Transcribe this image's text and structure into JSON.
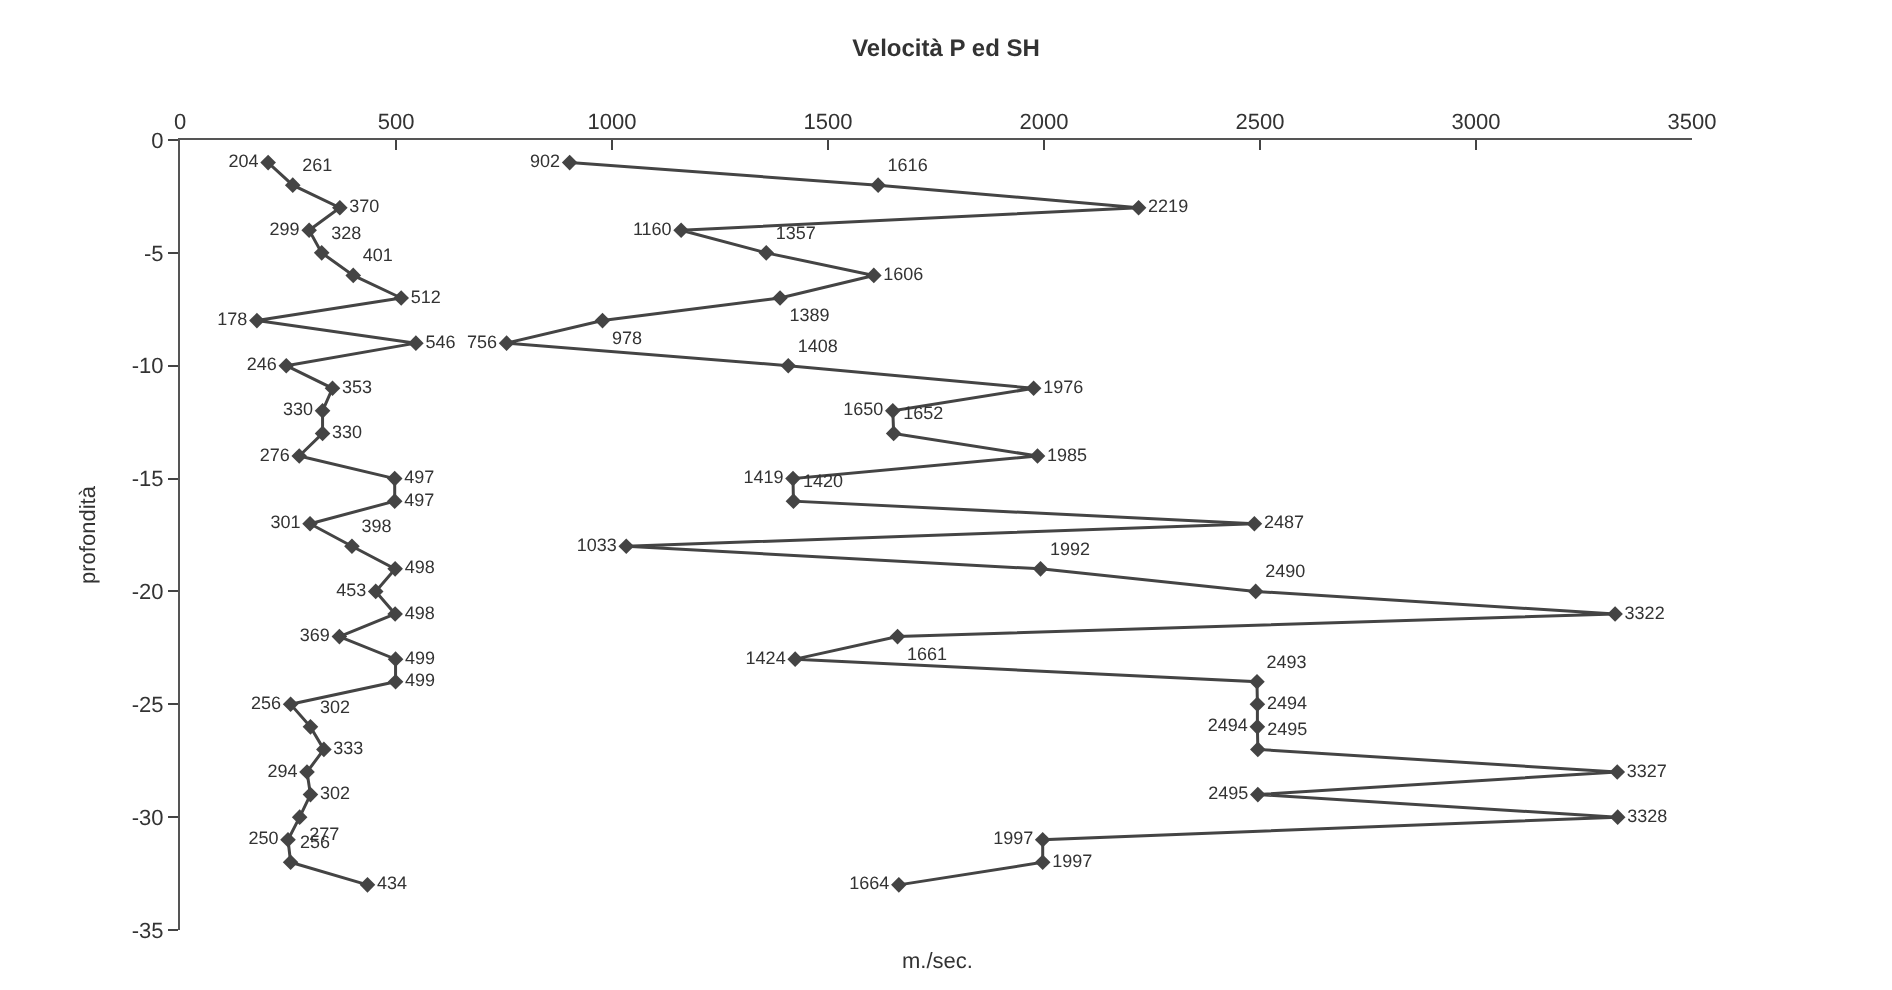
{
  "chart_data": {
    "type": "line",
    "title": "Velocità P ed SH",
    "xlabel": "m./sec.",
    "ylabel": "profondità",
    "orientation": "horizontal",
    "series": [
      {
        "color": "#444444",
        "x": [
          -1,
          -2,
          -3,
          -4,
          -5,
          -6,
          -7,
          -8,
          -9,
          -10,
          -11,
          -12,
          -13,
          -14,
          -15,
          -16,
          -17,
          -18,
          -19,
          -20,
          -21,
          -22,
          -23,
          -24,
          -25,
          -26,
          -27,
          -28,
          -29,
          -30,
          -31,
          -32,
          -33
        ],
        "values": [
          204,
          261,
          370,
          299,
          328,
          401,
          512,
          178,
          546,
          246,
          353,
          330,
          330,
          276,
          497,
          497,
          301,
          398,
          498,
          453,
          498,
          369,
          499,
          499,
          256,
          302,
          333,
          294,
          302,
          277,
          250,
          256,
          434
        ]
      },
      {
        "color": "#444444",
        "x": [
          -1,
          -2,
          -3,
          -4,
          -5,
          -6,
          -7,
          -8,
          -9,
          -10,
          -11,
          -12,
          -13,
          -14,
          -15,
          -16,
          -17,
          -18,
          -19,
          -20,
          -21,
          -22,
          -23,
          -24,
          -25,
          -26,
          -27,
          -28,
          -29,
          -30,
          -31,
          -32,
          -33
        ],
        "values": [
          902,
          1616,
          2219,
          1160,
          1357,
          1606,
          1389,
          978,
          756,
          1408,
          1976,
          1650,
          1652,
          1985,
          1419,
          1420,
          2487,
          1033,
          1992,
          2490,
          3322,
          1661,
          1424,
          2493,
          2494,
          2494,
          2495,
          3327,
          2495,
          3328,
          1997,
          1997,
          1664
        ]
      }
    ],
    "xlim": [
      0,
      3500
    ],
    "xticks": [
      0,
      500,
      1000,
      1500,
      2000,
      2500,
      3000,
      3500
    ],
    "ylim": [
      -35,
      0
    ],
    "yticks": [
      0,
      -5,
      -10,
      -15,
      -20,
      -25,
      -30,
      -35
    ],
    "marker": "diamond",
    "line_style": "solid",
    "data_labels": true
  }
}
